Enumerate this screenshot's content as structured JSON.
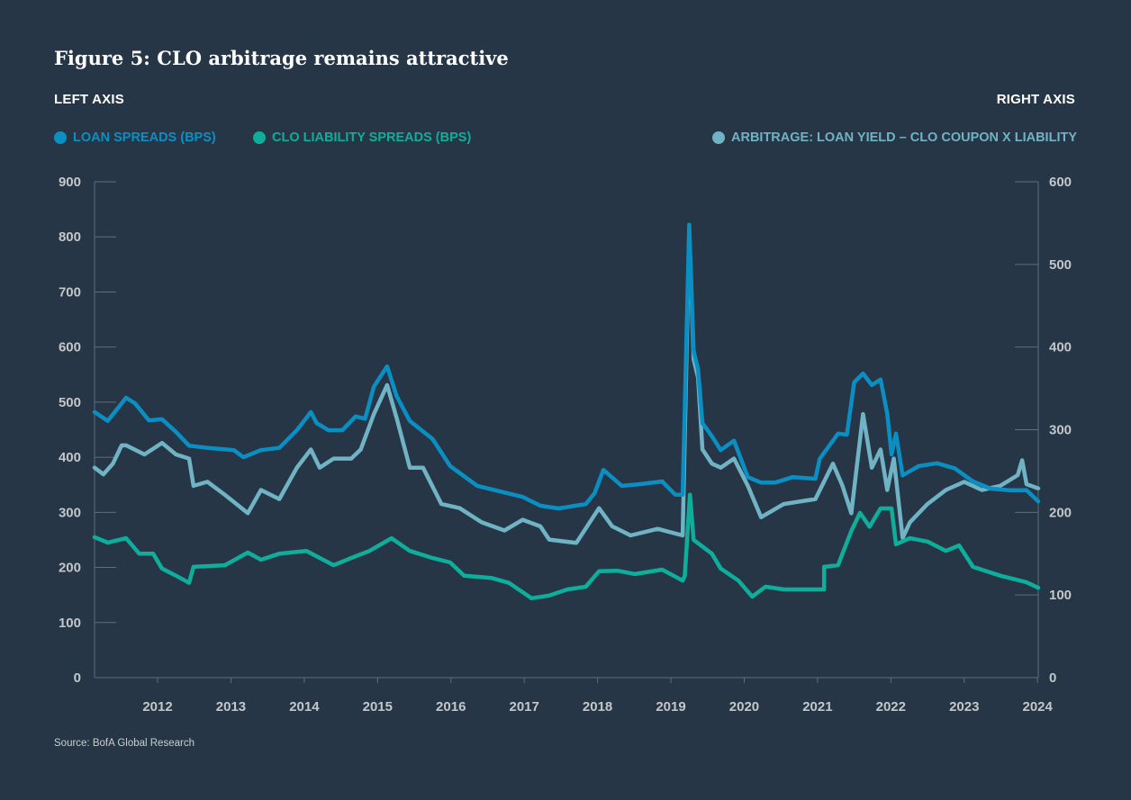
{
  "title": "Figure 5: CLO arbitrage remains attractive",
  "left_axis_label": "LEFT AXIS",
  "right_axis_label": "RIGHT AXIS",
  "source": "Source: BofA Global Research",
  "chart_data": {
    "type": "line",
    "title": "Figure 5: CLO arbitrage remains attractive",
    "x_ticks": [
      "2012",
      "2013",
      "2014",
      "2015",
      "2016",
      "2017",
      "2018",
      "2019",
      "2020",
      "2021",
      "2022",
      "2023",
      "2024"
    ],
    "xlim": [
      2011.14,
      2024.01
    ],
    "left_ylim": [
      0,
      900
    ],
    "left_ticks": [
      "0",
      "100",
      "200",
      "300",
      "400",
      "500",
      "600",
      "700",
      "800",
      "900"
    ],
    "right_ylim": [
      0,
      600
    ],
    "right_ticks": [
      "0",
      "100",
      "200",
      "300",
      "400",
      "500",
      "600"
    ],
    "grid": false,
    "legend_placement": "top",
    "series": [
      {
        "name": "LOAN SPREADS (BPS)",
        "axis": "left",
        "color": "#0b8fc3",
        "points": [
          [
            2011.14,
            482
          ],
          [
            2011.32,
            466
          ],
          [
            2011.57,
            508
          ],
          [
            2011.69,
            498
          ],
          [
            2011.88,
            467
          ],
          [
            2012.06,
            469
          ],
          [
            2012.25,
            446
          ],
          [
            2012.43,
            421
          ],
          [
            2012.68,
            417
          ],
          [
            2013.04,
            413
          ],
          [
            2013.17,
            400
          ],
          [
            2013.41,
            413
          ],
          [
            2013.66,
            417
          ],
          [
            2013.9,
            449
          ],
          [
            2014.09,
            482
          ],
          [
            2014.17,
            462
          ],
          [
            2014.33,
            449
          ],
          [
            2014.52,
            449
          ],
          [
            2014.7,
            474
          ],
          [
            2014.83,
            470
          ],
          [
            2014.95,
            528
          ],
          [
            2015.13,
            565
          ],
          [
            2015.26,
            511
          ],
          [
            2015.44,
            466
          ],
          [
            2015.75,
            433
          ],
          [
            2015.99,
            384
          ],
          [
            2016.36,
            348
          ],
          [
            2016.73,
            336
          ],
          [
            2016.98,
            328
          ],
          [
            2017.22,
            312
          ],
          [
            2017.47,
            307
          ],
          [
            2017.84,
            315
          ],
          [
            2017.96,
            335
          ],
          [
            2018.08,
            377
          ],
          [
            2018.33,
            348
          ],
          [
            2018.57,
            351
          ],
          [
            2018.88,
            356
          ],
          [
            2019.06,
            332
          ],
          [
            2019.16,
            332
          ],
          [
            2019.25,
            822
          ],
          [
            2019.31,
            593
          ],
          [
            2019.37,
            560
          ],
          [
            2019.43,
            462
          ],
          [
            2019.56,
            438
          ],
          [
            2019.68,
            413
          ],
          [
            2019.86,
            430
          ],
          [
            2020.05,
            364
          ],
          [
            2020.23,
            354
          ],
          [
            2020.42,
            354
          ],
          [
            2020.66,
            364
          ],
          [
            2020.97,
            361
          ],
          [
            2021.03,
            397
          ],
          [
            2021.28,
            443
          ],
          [
            2021.4,
            441
          ],
          [
            2021.5,
            536
          ],
          [
            2021.62,
            552
          ],
          [
            2021.74,
            531
          ],
          [
            2021.86,
            541
          ],
          [
            2021.95,
            479
          ],
          [
            2022.01,
            405
          ],
          [
            2022.07,
            443
          ],
          [
            2022.16,
            367
          ],
          [
            2022.38,
            384
          ],
          [
            2022.63,
            389
          ],
          [
            2022.87,
            380
          ],
          [
            2023.12,
            356
          ],
          [
            2023.36,
            343
          ],
          [
            2023.61,
            340
          ],
          [
            2023.85,
            340
          ],
          [
            2024.01,
            320
          ]
        ]
      },
      {
        "name": "CLO LIABILITY SPREADS (BPS)",
        "axis": "left",
        "color": "#0fae9b",
        "points": [
          [
            2011.14,
            255
          ],
          [
            2011.32,
            245
          ],
          [
            2011.57,
            253
          ],
          [
            2011.75,
            225
          ],
          [
            2011.94,
            225
          ],
          [
            2012.06,
            198
          ],
          [
            2012.25,
            185
          ],
          [
            2012.43,
            172
          ],
          [
            2012.49,
            201
          ],
          [
            2012.92,
            204
          ],
          [
            2013.23,
            227
          ],
          [
            2013.41,
            214
          ],
          [
            2013.66,
            225
          ],
          [
            2014.03,
            230
          ],
          [
            2014.4,
            204
          ],
          [
            2014.64,
            217
          ],
          [
            2014.89,
            230
          ],
          [
            2015.19,
            253
          ],
          [
            2015.44,
            230
          ],
          [
            2015.75,
            217
          ],
          [
            2015.99,
            209
          ],
          [
            2016.18,
            185
          ],
          [
            2016.55,
            181
          ],
          [
            2016.79,
            172
          ],
          [
            2017.1,
            144
          ],
          [
            2017.34,
            149
          ],
          [
            2017.59,
            160
          ],
          [
            2017.84,
            165
          ],
          [
            2018.02,
            193
          ],
          [
            2018.27,
            194
          ],
          [
            2018.51,
            188
          ],
          [
            2018.88,
            196
          ],
          [
            2019.16,
            176
          ],
          [
            2019.19,
            185
          ],
          [
            2019.26,
            332
          ],
          [
            2019.31,
            250
          ],
          [
            2019.56,
            225
          ],
          [
            2019.68,
            198
          ],
          [
            2019.92,
            176
          ],
          [
            2020.11,
            147
          ],
          [
            2020.29,
            165
          ],
          [
            2020.54,
            160
          ],
          [
            2021.09,
            160
          ],
          [
            2021.09,
            201
          ],
          [
            2021.28,
            204
          ],
          [
            2021.46,
            266
          ],
          [
            2021.58,
            299
          ],
          [
            2021.71,
            274
          ],
          [
            2021.86,
            307
          ],
          [
            2022.01,
            307
          ],
          [
            2022.07,
            242
          ],
          [
            2022.26,
            253
          ],
          [
            2022.5,
            247
          ],
          [
            2022.75,
            230
          ],
          [
            2022.93,
            240
          ],
          [
            2023.12,
            201
          ],
          [
            2023.49,
            185
          ],
          [
            2023.85,
            173
          ],
          [
            2024.01,
            163
          ]
        ]
      },
      {
        "name": "ARBITRAGE: LOAN YIELD – CLO COUPON X LIABILITY",
        "axis": "right",
        "color": "#6fb3c4",
        "points": [
          [
            2011.14,
            254
          ],
          [
            2011.26,
            246
          ],
          [
            2011.39,
            259
          ],
          [
            2011.51,
            281
          ],
          [
            2011.57,
            281
          ],
          [
            2011.82,
            270
          ],
          [
            2012.06,
            284
          ],
          [
            2012.25,
            270
          ],
          [
            2012.43,
            265
          ],
          [
            2012.49,
            232
          ],
          [
            2012.68,
            237
          ],
          [
            2012.92,
            221
          ],
          [
            2013.23,
            199
          ],
          [
            2013.41,
            227
          ],
          [
            2013.66,
            216
          ],
          [
            2013.9,
            254
          ],
          [
            2014.09,
            276
          ],
          [
            2014.21,
            254
          ],
          [
            2014.4,
            265
          ],
          [
            2014.64,
            265
          ],
          [
            2014.77,
            276
          ],
          [
            2014.95,
            319
          ],
          [
            2015.13,
            354
          ],
          [
            2015.26,
            314
          ],
          [
            2015.44,
            254
          ],
          [
            2015.62,
            254
          ],
          [
            2015.87,
            210
          ],
          [
            2016.12,
            205
          ],
          [
            2016.42,
            188
          ],
          [
            2016.73,
            178
          ],
          [
            2016.98,
            191
          ],
          [
            2017.22,
            183
          ],
          [
            2017.34,
            167
          ],
          [
            2017.71,
            163
          ],
          [
            2018.02,
            205
          ],
          [
            2018.2,
            183
          ],
          [
            2018.45,
            172
          ],
          [
            2018.82,
            180
          ],
          [
            2019.16,
            172
          ],
          [
            2019.25,
            539
          ],
          [
            2019.31,
            385
          ],
          [
            2019.37,
            363
          ],
          [
            2019.43,
            276
          ],
          [
            2019.56,
            259
          ],
          [
            2019.68,
            254
          ],
          [
            2019.86,
            265
          ],
          [
            2020.05,
            232
          ],
          [
            2020.23,
            194
          ],
          [
            2020.54,
            210
          ],
          [
            2020.97,
            216
          ],
          [
            2021.21,
            259
          ],
          [
            2021.34,
            232
          ],
          [
            2021.46,
            199
          ],
          [
            2021.62,
            319
          ],
          [
            2021.74,
            254
          ],
          [
            2021.86,
            276
          ],
          [
            2021.95,
            227
          ],
          [
            2022.04,
            265
          ],
          [
            2022.16,
            169
          ],
          [
            2022.26,
            188
          ],
          [
            2022.5,
            210
          ],
          [
            2022.75,
            227
          ],
          [
            2023.0,
            237
          ],
          [
            2023.24,
            227
          ],
          [
            2023.49,
            232
          ],
          [
            2023.73,
            245
          ],
          [
            2023.79,
            263
          ],
          [
            2023.85,
            234
          ],
          [
            2024.01,
            229
          ]
        ]
      }
    ]
  }
}
